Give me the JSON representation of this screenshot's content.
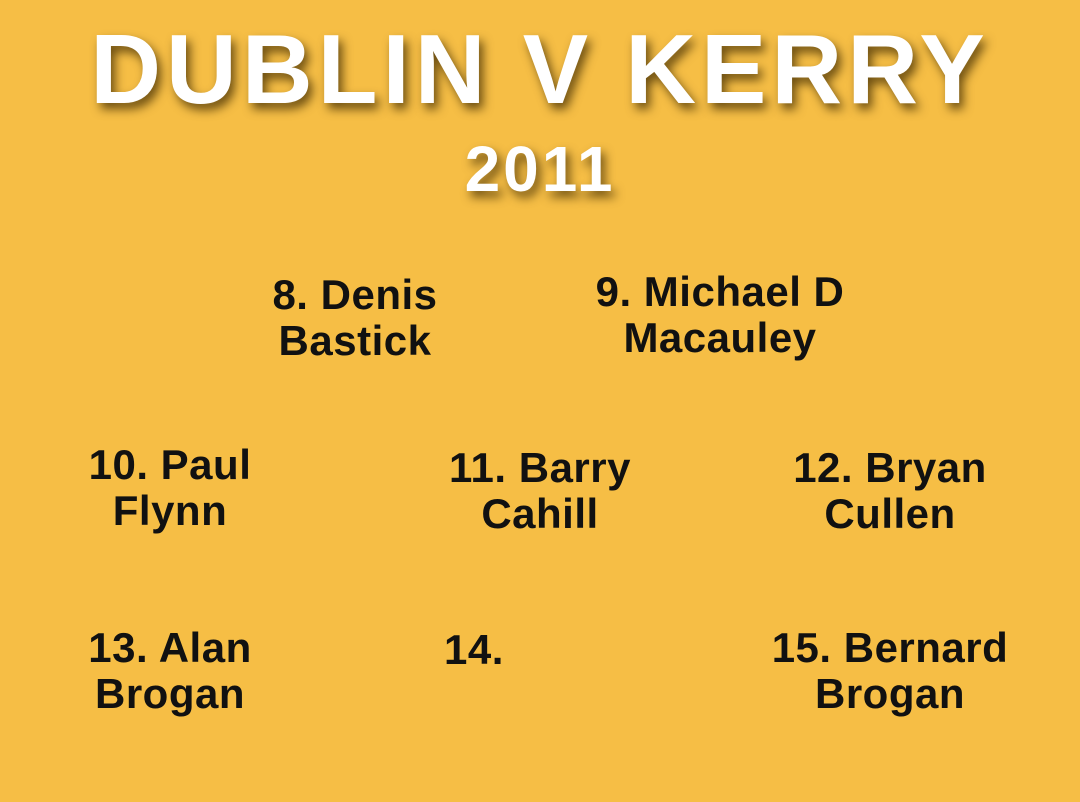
{
  "title": "DUBLIN V KERRY",
  "year": "2011",
  "background_color": "#F6BE45",
  "players": [
    {
      "line1": "8. Denis",
      "line2": "Bastick"
    },
    {
      "line1": "9. Michael D",
      "line2": "Macauley"
    },
    {
      "line1": "10. Paul",
      "line2": "Flynn"
    },
    {
      "line1": "11. Barry",
      "line2": "Cahill"
    },
    {
      "line1": "12. Bryan",
      "line2": "Cullen"
    },
    {
      "line1": "13. Alan",
      "line2": "Brogan"
    },
    {
      "line1": "14.",
      "line2": ""
    },
    {
      "line1": "15. Bernard",
      "line2": "Brogan"
    }
  ]
}
